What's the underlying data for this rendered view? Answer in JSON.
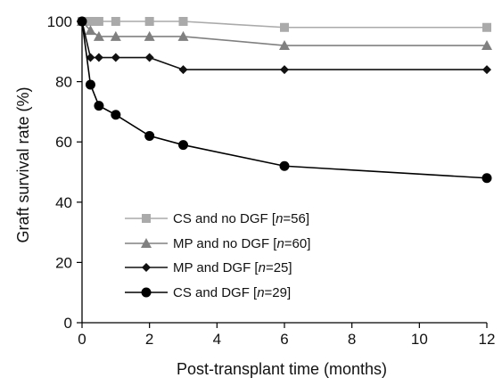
{
  "chart_data": {
    "type": "line",
    "title": "",
    "xlabel": "Post-transplant time (months)",
    "ylabel": "Graft survival rate (%)",
    "xlim": [
      0,
      12
    ],
    "ylim": [
      0,
      100
    ],
    "xticks": [
      "0",
      "2",
      "4",
      "6",
      "8",
      "10",
      "12"
    ],
    "yticks": [
      "0",
      "20",
      "40",
      "60",
      "80",
      "100"
    ],
    "grid": false,
    "legend_position": "bottom-left",
    "series": [
      {
        "name": "CS and no DGF",
        "n_label": "n",
        "n_value": "=56",
        "color": "#aaaaaa",
        "marker": "square",
        "x": [
          0,
          0.25,
          0.5,
          1,
          2,
          3,
          6,
          12
        ],
        "y": [
          100,
          100,
          100,
          100,
          100,
          100,
          98,
          98
        ]
      },
      {
        "name": "MP and no DGF",
        "n_label": "n",
        "n_value": "=60",
        "color": "#808080",
        "marker": "triangle",
        "x": [
          0,
          0.25,
          0.5,
          1,
          2,
          3,
          6,
          12
        ],
        "y": [
          100,
          97,
          95,
          95,
          95,
          95,
          92,
          92
        ]
      },
      {
        "name": "MP and DGF",
        "n_label": "n",
        "n_value": "=25",
        "color": "#111111",
        "marker": "diamond",
        "x": [
          0,
          0.25,
          0.5,
          1,
          2,
          3,
          6,
          12
        ],
        "y": [
          100,
          88,
          88,
          88,
          88,
          84,
          84,
          84
        ]
      },
      {
        "name": "CS and DGF",
        "n_label": "n",
        "n_value": "=29",
        "color": "#000000",
        "marker": "circle",
        "x": [
          0,
          0.25,
          0.5,
          1,
          2,
          3,
          6,
          12
        ],
        "y": [
          100,
          79,
          72,
          69,
          62,
          59,
          52,
          48
        ]
      }
    ]
  }
}
